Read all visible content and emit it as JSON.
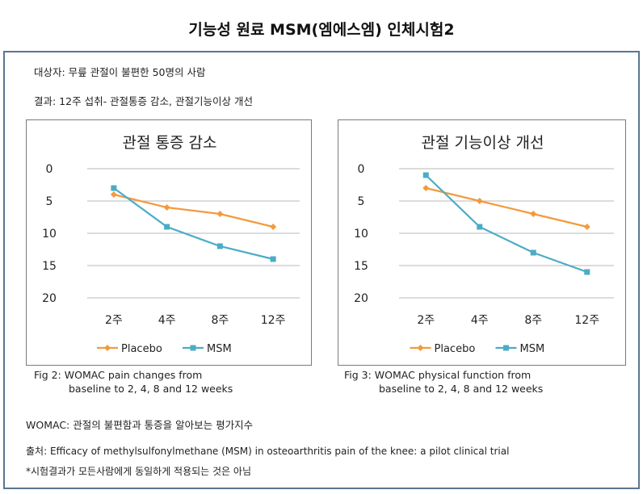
{
  "header": {
    "title": "기능성 원료 MSM(엠에스엠) 인체시험2"
  },
  "study": {
    "subjects": "대상자: 무릎 관절이 불편한 50명의 사람",
    "results": "결과: 12주 섭취- 관절통증 감소, 관절기능이상 개선"
  },
  "chart_data": [
    {
      "type": "line",
      "title": "관절 통증 감소",
      "categories": [
        "2주",
        "4주",
        "8주",
        "12주"
      ],
      "series": [
        {
          "name": "Placebo",
          "values": [
            4,
            6,
            7,
            9
          ],
          "color": "#F39A3D",
          "marker": "diamond"
        },
        {
          "name": "MSM",
          "values": [
            3,
            9,
            12,
            14
          ],
          "color": "#4BACC6",
          "marker": "square"
        }
      ],
      "yticks": [
        0,
        5,
        10,
        15,
        20
      ],
      "ylim": [
        0,
        20
      ],
      "y_inverted": true,
      "grid": true,
      "legend": "bottom"
    },
    {
      "type": "line",
      "title": "관절 기능이상 개선",
      "categories": [
        "2주",
        "4주",
        "8주",
        "12주"
      ],
      "series": [
        {
          "name": "Placebo",
          "values": [
            3,
            5,
            7,
            9
          ],
          "color": "#F39A3D",
          "marker": "diamond"
        },
        {
          "name": "MSM",
          "values": [
            1,
            9,
            13,
            16
          ],
          "color": "#4BACC6",
          "marker": "square"
        }
      ],
      "yticks": [
        0,
        5,
        10,
        15,
        20
      ],
      "ylim": [
        0,
        20
      ],
      "y_inverted": true,
      "grid": true,
      "legend": "bottom"
    }
  ],
  "captions": [
    {
      "line1": "Fig 2: WOMAC pain changes from",
      "line2": "baseline to 2, 4, 8 and 12 weeks"
    },
    {
      "line1": "Fig 3: WOMAC physical function from",
      "line2": "baseline to 2, 4, 8 and 12 weeks"
    }
  ],
  "footer": {
    "womac": "WOMAC: 관절의 불편함과 통증을 알아보는 평가지수",
    "source": "출처: Efficacy of methylsulfonylmethane (MSM) in osteoarthritis pain of the knee: a pilot clinical trial",
    "disclaimer": "*시험결과가 모든사람에게 동일하게 적용되는 것은 아님"
  }
}
